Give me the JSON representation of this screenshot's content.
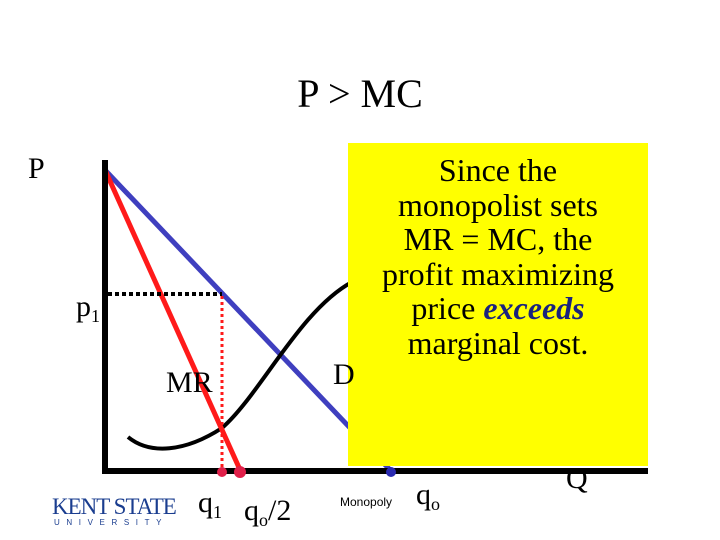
{
  "slide": {
    "title": "P > MC",
    "axis_p_label": "P",
    "axis_q_label": "Q",
    "price_label": "p",
    "price_sub": "1",
    "mr_label": "MR",
    "demand_label": "D",
    "q1_label": "q",
    "q1_sub": "1",
    "qo2_label": "q",
    "qo2_sub": "o",
    "qo2_suffix": "/2",
    "monopoly_label": "Monopoly",
    "qo_label": "q",
    "qo_sub": "o"
  },
  "callout": {
    "line1": "Since the",
    "line2": "monopolist sets",
    "line3": "MR = MC, the",
    "line4": "profit maximizing",
    "line5a": "price ",
    "line5b": "exceeds",
    "line6": "marginal cost.",
    "background": "#ffff00",
    "emphasis_color": "#1a237e"
  },
  "logo": {
    "name": "KENT STATE",
    "sub": "UNIVERSITY"
  },
  "colors": {
    "demand": "#3f3fbf",
    "marginal_revenue": "#ff1a1a",
    "marginal_cost": "#000000",
    "point_red": "#e0204a",
    "point_blue": "#2a2ab0"
  }
}
